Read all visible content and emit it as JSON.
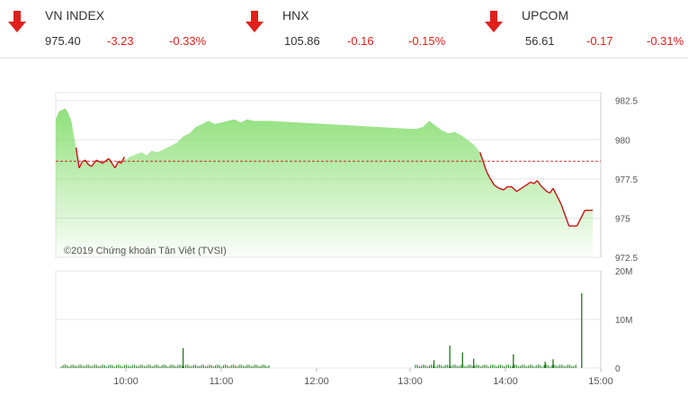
{
  "tickers": [
    {
      "id": "vn",
      "name": "VN INDEX",
      "value": "975.40",
      "change": "-3.23",
      "pct": "-0.33%",
      "direction": "down",
      "selected": true
    },
    {
      "id": "hnx",
      "name": "HNX",
      "value": "105.86",
      "change": "-0.16",
      "pct": "-0.15%",
      "direction": "down",
      "selected": false
    },
    {
      "id": "upcom",
      "name": "UPCOM",
      "value": "56.61",
      "change": "-0.17",
      "pct": "-0.31%",
      "direction": "down",
      "selected": false
    }
  ],
  "colors": {
    "down": "#e0201c",
    "up_fill": "#8fe07a",
    "price_line_down": "#cc1111",
    "reference": "#cc1111",
    "volume": "#1a7a1a"
  },
  "chart_data": [
    {
      "type": "area",
      "title": "",
      "watermark": "©2019 Chứng khoán Tân Việt (TVSI)",
      "reference": 978.63,
      "ylim": [
        972.5,
        983
      ],
      "yticks": [
        "982.5",
        "980",
        "977.5",
        "975",
        "972.5"
      ],
      "xlim": [
        "09:15",
        "15:00"
      ],
      "xticks": [
        "10:00",
        "11:00",
        "12:00",
        "13:00",
        "14:00",
        "15:00"
      ],
      "x": [
        "09:15",
        "09:17",
        "09:19",
        "09:21",
        "09:23",
        "09:25",
        "09:28",
        "09:30",
        "09:32",
        "09:34",
        "09:36",
        "09:38",
        "09:41",
        "09:45",
        "09:49",
        "09:53",
        "09:55",
        "09:57",
        "09:59",
        "10:00",
        "10:02",
        "10:05",
        "10:07",
        "10:10",
        "10:13",
        "10:16",
        "10:20",
        "10:24",
        "10:28",
        "10:32",
        "10:36",
        "10:40",
        "10:44",
        "10:48",
        "10:52",
        "10:56",
        "11:00",
        "11:04",
        "11:08",
        "11:12",
        "11:16",
        "11:20",
        "11:24",
        "11:30",
        "13:00",
        "13:04",
        "13:08",
        "13:12",
        "13:16",
        "13:20",
        "13:24",
        "13:28",
        "13:32",
        "13:36",
        "13:40",
        "13:44",
        "13:46",
        "13:48",
        "13:50",
        "13:53",
        "13:56",
        "13:59",
        "14:01",
        "14:04",
        "14:07",
        "14:10",
        "14:13",
        "14:16",
        "14:18",
        "14:20",
        "14:22",
        "14:24",
        "14:26",
        "14:28",
        "14:30",
        "14:35",
        "14:40",
        "14:45",
        "14:50",
        "14:55"
      ],
      "series": [
        {
          "values": [
            981.3,
            981.8,
            981.9,
            982.0,
            981.7,
            981.2,
            979.5,
            978.2,
            978.6,
            978.7,
            978.4,
            978.3,
            978.7,
            978.5,
            978.8,
            978.2,
            978.6,
            978.5,
            978.9,
            978.7,
            978.9,
            979.0,
            979.1,
            979.2,
            979.0,
            979.3,
            979.2,
            979.4,
            979.6,
            979.8,
            980.2,
            980.4,
            980.8,
            981.0,
            981.2,
            981.0,
            981.1,
            981.2,
            981.3,
            981.1,
            981.3,
            981.2,
            981.2,
            981.2,
            980.7,
            980.7,
            980.8,
            981.2,
            980.9,
            980.6,
            980.4,
            980.5,
            980.3,
            980.0,
            979.7,
            979.2,
            978.6,
            978.0,
            977.6,
            977.1,
            976.9,
            976.8,
            977.0,
            977.0,
            976.7,
            976.9,
            977.1,
            977.3,
            977.2,
            977.4,
            977.1,
            976.9,
            976.7,
            976.6,
            976.9,
            975.9,
            974.5,
            974.5,
            975.5,
            975.5
          ]
        }
      ]
    },
    {
      "type": "bar",
      "title": "",
      "ylim": [
        0,
        20000000
      ],
      "yticks": [
        "20M",
        "10M",
        "0"
      ],
      "xlim": [
        "09:15",
        "15:00"
      ],
      "xticks": [
        "10:00",
        "11:00",
        "12:00",
        "13:00",
        "14:00",
        "15:00"
      ],
      "x": [
        "10:36",
        "13:15",
        "13:25",
        "13:33",
        "13:40",
        "14:05",
        "14:25",
        "14:30",
        "14:48"
      ],
      "series": [
        {
          "name": "volume",
          "values": [
            4100000,
            1600000,
            4600000,
            3200000,
            1900000,
            2800000,
            1300000,
            1800000,
            15400000
          ]
        }
      ],
      "baseline_volume": 700000
    }
  ]
}
